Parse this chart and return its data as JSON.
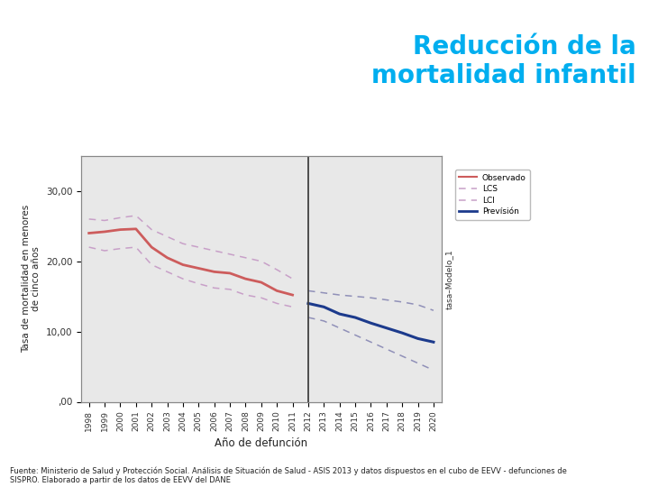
{
  "title_line1": "Reducción de la",
  "title_line2": "mortalidad infantil",
  "title_color": "#00AEEF",
  "xlabel": "Año de defunción",
  "ylabel": "Tasa de mortalidad en menores\nde cinco años",
  "ylabel2": "tasa–Modelo_1",
  "chart_bg": "#E8E8E8",
  "figure_bg": "#FFFFFF",
  "header_bg": "#FFFFFF",
  "footer": "Fuente: Ministerio de Salud y Protección Social. Análisis de Situación de Salud - ASIS 2013 y datos dispuestos en el cubo de EEVV - defunciones de\nSISPRO. Elaborado a partir de los datos de EEVV del DANE",
  "years_obs": [
    1998,
    1999,
    2000,
    2001,
    2002,
    2003,
    2004,
    2005,
    2006,
    2007,
    2008,
    2009,
    2010,
    2011
  ],
  "observado": [
    24.0,
    24.2,
    24.5,
    24.6,
    22.0,
    20.5,
    19.5,
    19.0,
    18.5,
    18.3,
    17.5,
    17.0,
    15.8,
    15.2
  ],
  "lcs_obs": [
    26.0,
    25.8,
    26.2,
    26.5,
    24.5,
    23.5,
    22.5,
    22.0,
    21.5,
    21.0,
    20.5,
    20.0,
    18.8,
    17.5
  ],
  "lci_obs": [
    22.0,
    21.5,
    21.8,
    22.0,
    19.5,
    18.5,
    17.5,
    16.8,
    16.2,
    16.0,
    15.2,
    14.8,
    14.0,
    13.5
  ],
  "years_prev": [
    2012,
    2013,
    2014,
    2015,
    2016,
    2017,
    2018,
    2019,
    2020
  ],
  "prevision": [
    14.0,
    13.5,
    12.5,
    12.0,
    11.2,
    10.5,
    9.8,
    9.0,
    8.5
  ],
  "lcs_prev": [
    15.8,
    15.5,
    15.2,
    15.0,
    14.8,
    14.5,
    14.2,
    13.8,
    13.0
  ],
  "lci_prev": [
    12.0,
    11.5,
    10.5,
    9.5,
    8.5,
    7.5,
    6.5,
    5.5,
    4.5
  ],
  "vline_x": 2012,
  "ylim": [
    0,
    35
  ],
  "yticks": [
    0,
    10,
    20,
    30
  ],
  "ytick_labels": [
    ",00",
    "10,00",
    "20,00",
    "30,00"
  ],
  "obs_color": "#CD5C5C",
  "lcs_obs_color": "#C8A0C8",
  "lci_obs_color": "#C8A0C8",
  "prev_color": "#1C3A8C",
  "lcs_prev_color": "#9090B8",
  "lci_prev_color": "#9090B8",
  "legend_obs": "Observado",
  "legend_lcs": "LCS",
  "legend_lci": "LCI",
  "legend_prev": "Prevísión"
}
